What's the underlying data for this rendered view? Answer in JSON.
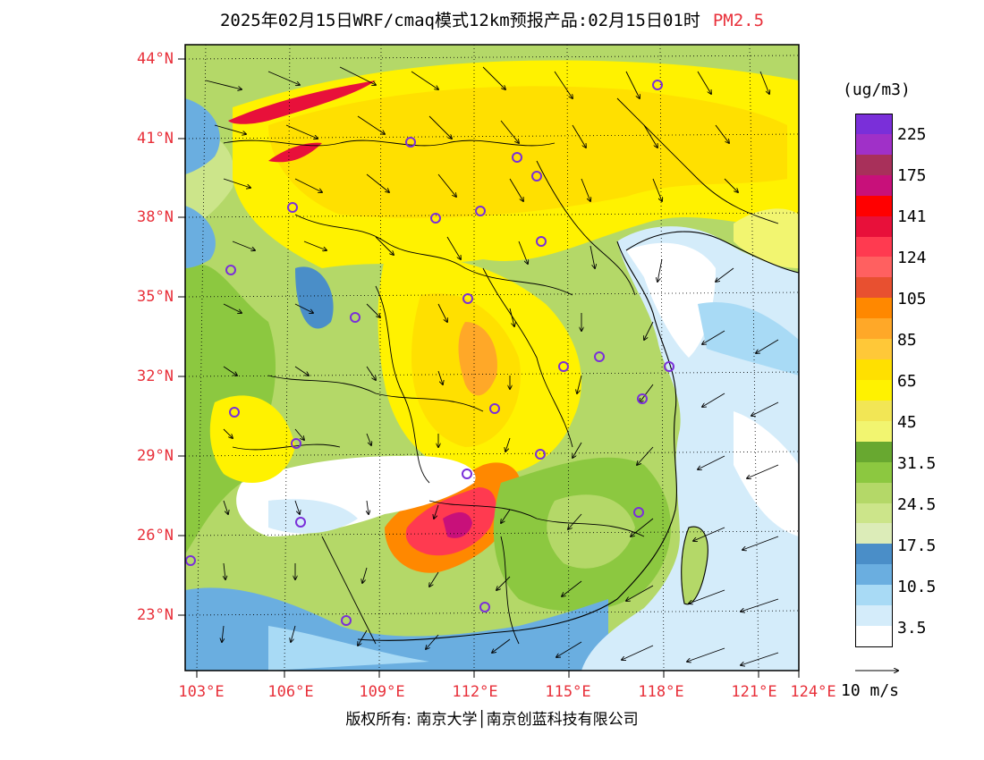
{
  "title": {
    "main": "2025年02月15日WRF/cmaq模式12km预报产品:02月15日01时",
    "pollutant": "PM2.5"
  },
  "latitude_labels": [
    "44°N",
    "41°N",
    "38°N",
    "35°N",
    "32°N",
    "29°N",
    "26°N",
    "23°N"
  ],
  "longitude_labels": [
    "103°E",
    "106°E",
    "109°E",
    "112°E",
    "115°E",
    "118°E",
    "121°E",
    "124°E"
  ],
  "legend": {
    "unit": "(ug/m3)",
    "labels": [
      "225",
      "175",
      "141",
      "124",
      "105",
      "85",
      "65",
      "45",
      "31.5",
      "24.5",
      "17.5",
      "10.5",
      "3.5"
    ],
    "colors": [
      "#7a2fd9",
      "#a030c8",
      "#a8305a",
      "#c8107a",
      "#ff0000",
      "#e8103a",
      "#ff3a50",
      "#ff6060",
      "#e85030",
      "#ff8800",
      "#ffa828",
      "#ffc838",
      "#ffe000",
      "#fff200",
      "#f2e655",
      "#f2f570",
      "#68a830",
      "#8cc840",
      "#b4d868",
      "#cce58a",
      "#dcecb8",
      "#4a8ec8",
      "#6aaee0",
      "#a8daf5",
      "#d4ecfa",
      "#ffffff"
    ]
  },
  "wind_vector_label": "10 m/s",
  "copyright": "版权所有: 南京大学│南京创蓝科技有限公司"
}
